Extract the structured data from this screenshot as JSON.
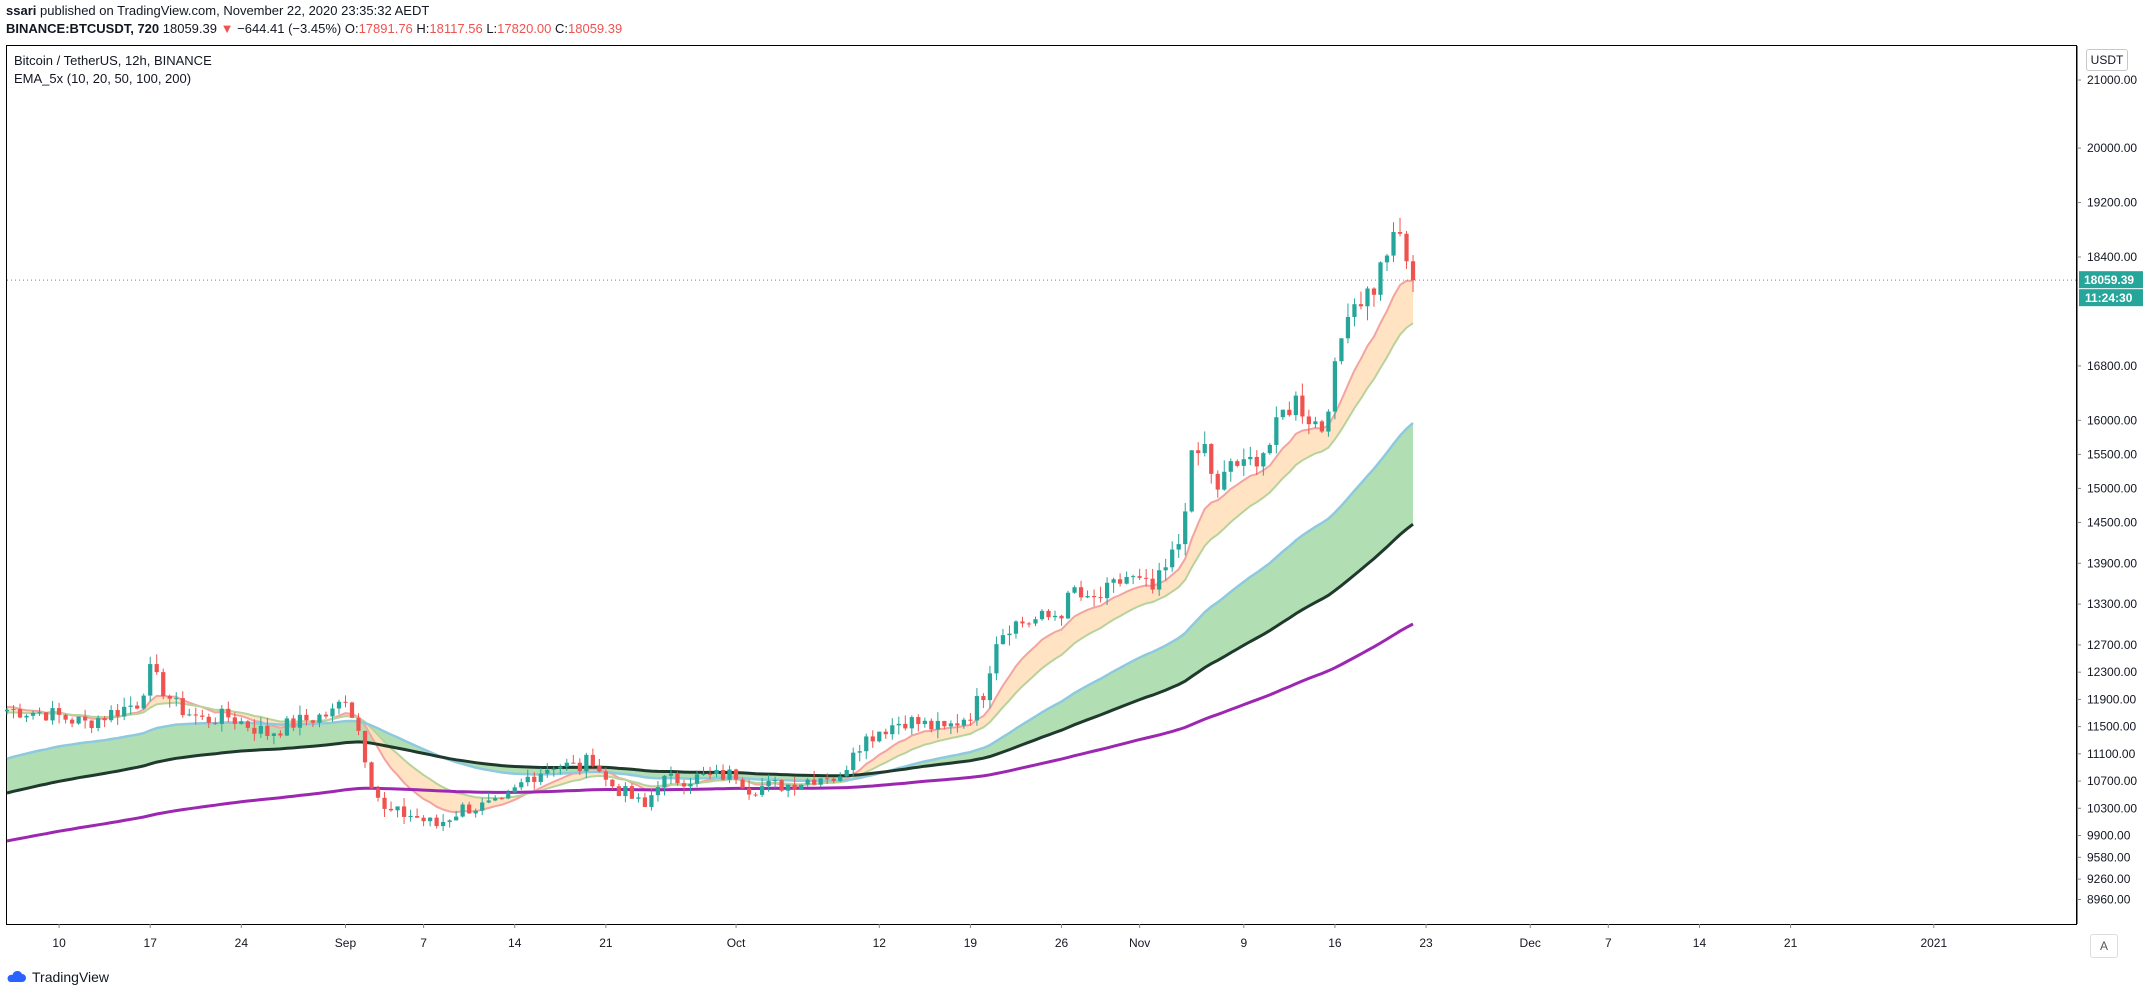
{
  "header": {
    "publisher": "ssari",
    "published_text": "published on TradingView.com, November 22, 2020 23:35:32 AEDT",
    "symbol": "BINANCE:BTCUSDT, 720",
    "last": "18059.39",
    "change_arrow": "▼",
    "change": "−644.41 (−3.45%)",
    "o_label": "O:",
    "o_value": "17891.76",
    "h_label": "H:",
    "h_value": "18117.56",
    "l_label": "L:",
    "l_value": "17820.00",
    "c_label": "C:",
    "c_value": "18059.39"
  },
  "legend": {
    "title": "Bitcoin / TetherUS, 12h, BINANCE",
    "indicator": "EMA_5x (10, 20, 50, 100, 200)"
  },
  "unit_button": "USDT",
  "auto_button": "A",
  "brand": "TradingView",
  "colors": {
    "up": "#26a69a",
    "down": "#ef5350",
    "ema10": "#f4a3a0",
    "ema20": "#b7d39a",
    "ribbon_fast": "#ffe0bd",
    "ema50": "#8ec9e0",
    "ema100": "#1f3a2c",
    "ribbon_slow": "#a8dcab",
    "ema200": "#9c27b0",
    "price_line": "#26a69a",
    "axis_text": "#131722"
  },
  "chart_data": {
    "type": "candlestick",
    "title": "Bitcoin / TetherUS, 12h, BINANCE",
    "timeframe": "12h",
    "x_start": "2020-08-06",
    "x_end": "2021-01-12",
    "ylim": [
      8600,
      21500
    ],
    "y_ticks": [
      {
        "value": 8960,
        "label": "8960.00"
      },
      {
        "value": 9260,
        "label": "9260.00"
      },
      {
        "value": 9580,
        "label": "9580.00"
      },
      {
        "value": 9900,
        "label": "9900.00"
      },
      {
        "value": 10300,
        "label": "10300.00"
      },
      {
        "value": 10700,
        "label": "10700.00"
      },
      {
        "value": 11100,
        "label": "11100.00"
      },
      {
        "value": 11500,
        "label": "11500.00"
      },
      {
        "value": 11900,
        "label": "11900.00"
      },
      {
        "value": 12300,
        "label": "12300.00"
      },
      {
        "value": 12700,
        "label": "12700.00"
      },
      {
        "value": 13300,
        "label": "13300.00"
      },
      {
        "value": 13900,
        "label": "13900.00"
      },
      {
        "value": 14500,
        "label": "14500.00"
      },
      {
        "value": 15000,
        "label": "15000.00"
      },
      {
        "value": 15500,
        "label": "15500.00"
      },
      {
        "value": 16000,
        "label": "16000.00"
      },
      {
        "value": 16800,
        "label": "16800.00"
      },
      {
        "value": 18400,
        "label": "18400.00"
      },
      {
        "value": 19200,
        "label": "19200.00"
      },
      {
        "value": 20000,
        "label": "20000.00"
      },
      {
        "value": 21000,
        "label": "21000.00"
      }
    ],
    "x_ticks": [
      {
        "date": "2020-08-10",
        "label": "10"
      },
      {
        "date": "2020-08-17",
        "label": "17"
      },
      {
        "date": "2020-08-24",
        "label": "24"
      },
      {
        "date": "2020-09-01",
        "label": "Sep"
      },
      {
        "date": "2020-09-07",
        "label": "7"
      },
      {
        "date": "2020-09-14",
        "label": "14"
      },
      {
        "date": "2020-09-21",
        "label": "21"
      },
      {
        "date": "2020-10-01",
        "label": "Oct"
      },
      {
        "date": "2020-10-12",
        "label": "12"
      },
      {
        "date": "2020-10-19",
        "label": "19"
      },
      {
        "date": "2020-10-26",
        "label": "26"
      },
      {
        "date": "2020-11-01",
        "label": "Nov"
      },
      {
        "date": "2020-11-09",
        "label": "9"
      },
      {
        "date": "2020-11-16",
        "label": "16"
      },
      {
        "date": "2020-11-23",
        "label": "23"
      },
      {
        "date": "2020-12-01",
        "label": "Dec"
      },
      {
        "date": "2020-12-07",
        "label": "7"
      },
      {
        "date": "2020-12-14",
        "label": "14"
      },
      {
        "date": "2020-12-21",
        "label": "21"
      },
      {
        "date": "2021-01-01",
        "label": "2021"
      }
    ],
    "last_price": {
      "value": 18059.39,
      "label": "18059.39",
      "countdown": "11:24:30"
    },
    "price_anchors": [
      [
        "2020-08-06",
        11750
      ],
      [
        "2020-08-09",
        11700
      ],
      [
        "2020-08-12",
        11550
      ],
      [
        "2020-08-16",
        11850
      ],
      [
        "2020-08-17",
        12300
      ],
      [
        "2020-08-19",
        11800
      ],
      [
        "2020-08-21",
        11600
      ],
      [
        "2020-08-23",
        11650
      ],
      [
        "2020-08-26",
        11400
      ],
      [
        "2020-08-28",
        11550
      ],
      [
        "2020-08-31",
        11700
      ],
      [
        "2020-09-01",
        11950
      ],
      [
        "2020-09-02",
        11450
      ],
      [
        "2020-09-03",
        10700
      ],
      [
        "2020-09-04",
        10250
      ],
      [
        "2020-09-06",
        10200
      ],
      [
        "2020-09-08",
        10050
      ],
      [
        "2020-09-10",
        10300
      ],
      [
        "2020-09-13",
        10350
      ],
      [
        "2020-09-15",
        10750
      ],
      [
        "2020-09-17",
        10950
      ],
      [
        "2020-09-19",
        10900
      ],
      [
        "2020-09-20",
        11050
      ],
      [
        "2020-09-21",
        10700
      ],
      [
        "2020-09-23",
        10450
      ],
      [
        "2020-09-24",
        10300
      ],
      [
        "2020-09-25",
        10700
      ],
      [
        "2020-09-28",
        10750
      ],
      [
        "2020-10-01",
        10800
      ],
      [
        "2020-10-02",
        10600
      ],
      [
        "2020-10-05",
        10650
      ],
      [
        "2020-10-08",
        10800
      ],
      [
        "2020-10-09",
        10700
      ],
      [
        "2020-10-10",
        11200
      ],
      [
        "2020-10-12",
        11450
      ],
      [
        "2020-10-14",
        11600
      ],
      [
        "2020-10-17",
        11450
      ],
      [
        "2020-10-19",
        11700
      ],
      [
        "2020-10-20",
        12000
      ],
      [
        "2020-10-21",
        12800
      ],
      [
        "2020-10-22",
        13000
      ],
      [
        "2020-10-25",
        13100
      ],
      [
        "2020-10-26",
        13200
      ],
      [
        "2020-10-27",
        13500
      ],
      [
        "2020-10-28",
        13300
      ],
      [
        "2020-10-29",
        13400
      ],
      [
        "2020-10-31",
        13700
      ],
      [
        "2020-11-02",
        13500
      ],
      [
        "2020-11-03",
        13800
      ],
      [
        "2020-11-04",
        14200
      ],
      [
        "2020-11-05",
        15400
      ],
      [
        "2020-11-06",
        15600
      ],
      [
        "2020-11-07",
        14900
      ],
      [
        "2020-11-08",
        15400
      ],
      [
        "2020-11-09",
        15300
      ],
      [
        "2020-11-11",
        15650
      ],
      [
        "2020-11-12",
        16100
      ],
      [
        "2020-11-13",
        16300
      ],
      [
        "2020-11-14",
        16050
      ],
      [
        "2020-11-15",
        15900
      ],
      [
        "2020-11-16",
        16700
      ],
      [
        "2020-11-17",
        17700
      ],
      [
        "2020-11-18",
        17800
      ],
      [
        "2020-11-19",
        17950
      ],
      [
        "2020-11-20",
        18500
      ],
      [
        "2020-11-21",
        18700
      ],
      [
        "2020-11-22",
        18059
      ]
    ]
  }
}
